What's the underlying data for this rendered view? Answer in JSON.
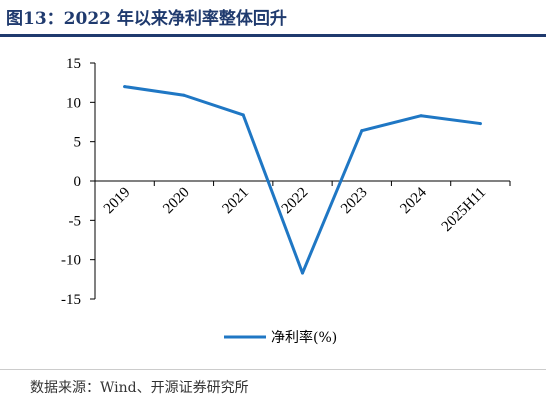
{
  "header": {
    "title": "图13：2022 年以来净利率整体回升"
  },
  "footer": {
    "source": "数据来源：Wind、开源证券研究所"
  },
  "colors": {
    "title": "#1f3a6e",
    "series": "#1f77c4",
    "axis": "#000000"
  },
  "chart_data": {
    "type": "line",
    "title": "",
    "xlabel": "",
    "ylabel": "",
    "categories": [
      "2019",
      "2020",
      "2021",
      "2022",
      "2023",
      "2024",
      "2025H11"
    ],
    "series": [
      {
        "name": "净利率(%)",
        "values": [
          12.0,
          10.9,
          8.4,
          -11.7,
          6.4,
          8.3,
          7.3
        ]
      }
    ],
    "ylim": [
      -15,
      15
    ],
    "yticks": [
      "15",
      "10",
      "5",
      "0",
      "-5",
      "-10",
      "-15"
    ],
    "grid": false,
    "legend_position": "bottom-center"
  }
}
